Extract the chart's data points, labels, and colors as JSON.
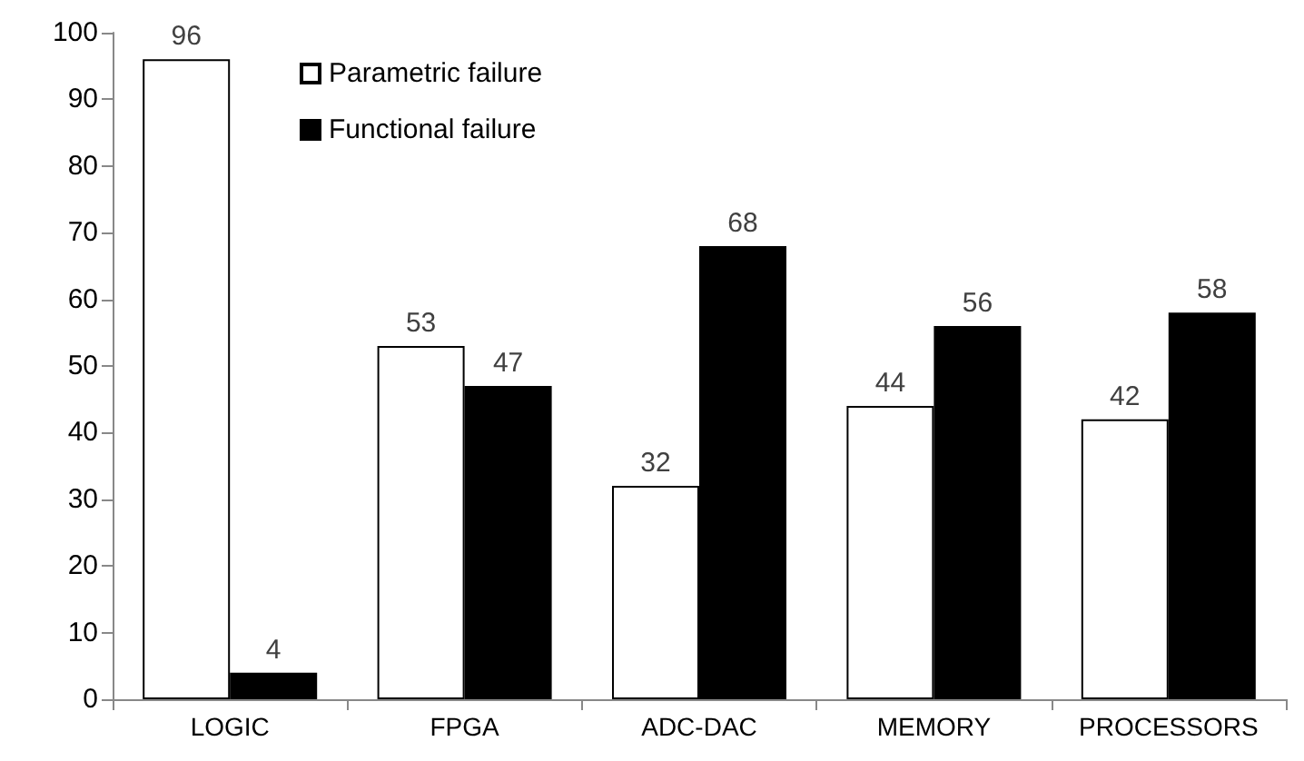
{
  "chart_data": {
    "type": "bar",
    "categories": [
      "LOGIC",
      "FPGA",
      "ADC-DAC",
      "MEMORY",
      "PROCESSORS"
    ],
    "series": [
      {
        "name": "Parametric failure",
        "color": "#ffffff",
        "values": [
          96,
          53,
          32,
          44,
          42
        ]
      },
      {
        "name": "Functional failure",
        "color": "#000000",
        "values": [
          4,
          47,
          68,
          56,
          58
        ]
      }
    ],
    "ylim": [
      0,
      100
    ],
    "yticks": [
      0,
      10,
      20,
      30,
      40,
      50,
      60,
      70,
      80,
      90,
      100
    ],
    "grid": false,
    "legend": "top left",
    "data_labels": true
  }
}
